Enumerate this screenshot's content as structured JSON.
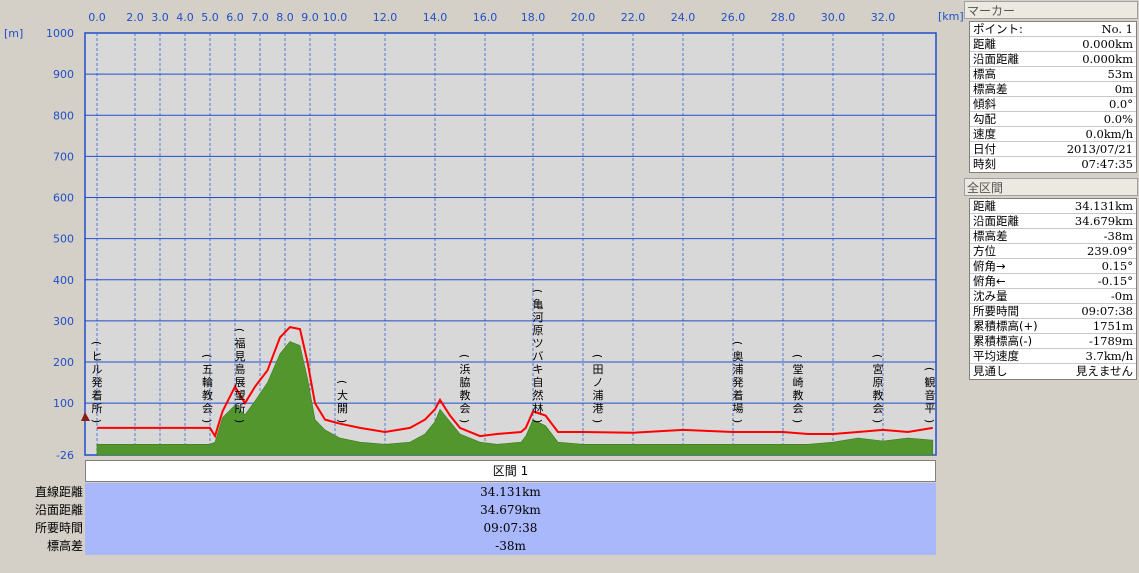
{
  "chart_data": {
    "type": "area",
    "x_unit": "[km]",
    "y_unit": "[m]",
    "x_ticks": [
      "0.0",
      "2.0",
      "3.0",
      "4.0",
      "5.0",
      "6.0",
      "7.0",
      "8.0",
      "9.0",
      "10.0",
      "12.0",
      "14.0",
      "16.0",
      "18.0",
      "20.0",
      "22.0",
      "24.0",
      "26.0",
      "28.0",
      "30.0",
      "32.0"
    ],
    "y_ticks": [
      "1000",
      "900",
      "800",
      "700",
      "600",
      "500",
      "400",
      "300",
      "200",
      "100",
      "-26"
    ],
    "ylim": [
      -26,
      1000
    ],
    "grid": true,
    "series": [
      {
        "color": "#54962e",
        "fill": true,
        "points": [
          [
            0,
            0
          ],
          [
            5,
            0
          ],
          [
            5.2,
            5
          ],
          [
            5.5,
            65
          ],
          [
            6,
            95
          ],
          [
            6.4,
            72
          ],
          [
            6.8,
            105
          ],
          [
            7.3,
            150
          ],
          [
            7.8,
            220
          ],
          [
            8.2,
            250
          ],
          [
            8.6,
            240
          ],
          [
            8.9,
            160
          ],
          [
            9.2,
            60
          ],
          [
            9.6,
            35
          ],
          [
            10.2,
            15
          ],
          [
            11,
            5
          ],
          [
            12,
            0
          ],
          [
            13,
            5
          ],
          [
            13.6,
            25
          ],
          [
            14,
            55
          ],
          [
            14.2,
            85
          ],
          [
            14.6,
            55
          ],
          [
            15,
            25
          ],
          [
            15.8,
            5
          ],
          [
            16.5,
            0
          ],
          [
            17.5,
            5
          ],
          [
            17.7,
            20
          ],
          [
            18,
            60
          ],
          [
            18.5,
            45
          ],
          [
            19,
            5
          ],
          [
            20,
            0
          ],
          [
            22,
            0
          ],
          [
            24,
            0
          ],
          [
            26,
            0
          ],
          [
            28,
            0
          ],
          [
            29,
            0
          ],
          [
            30,
            5
          ],
          [
            31,
            15
          ],
          [
            32,
            8
          ],
          [
            33,
            15
          ],
          [
            34,
            10
          ]
        ]
      },
      {
        "color": "#ff0000",
        "fill": false,
        "points": [
          [
            0,
            40
          ],
          [
            5,
            40
          ],
          [
            5.2,
            20
          ],
          [
            5.5,
            80
          ],
          [
            6,
            140
          ],
          [
            6.4,
            100
          ],
          [
            6.8,
            140
          ],
          [
            7.3,
            180
          ],
          [
            7.8,
            260
          ],
          [
            8.2,
            285
          ],
          [
            8.6,
            280
          ],
          [
            8.9,
            200
          ],
          [
            9.2,
            100
          ],
          [
            9.6,
            60
          ],
          [
            10.2,
            50
          ],
          [
            11,
            40
          ],
          [
            12,
            30
          ],
          [
            13,
            40
          ],
          [
            13.6,
            60
          ],
          [
            14,
            85
          ],
          [
            14.2,
            108
          ],
          [
            14.6,
            70
          ],
          [
            15,
            40
          ],
          [
            15.8,
            20
          ],
          [
            16.5,
            25
          ],
          [
            17.5,
            30
          ],
          [
            17.7,
            40
          ],
          [
            18,
            80
          ],
          [
            18.5,
            70
          ],
          [
            19,
            30
          ],
          [
            20,
            30
          ],
          [
            22,
            28
          ],
          [
            24,
            35
          ],
          [
            26,
            30
          ],
          [
            28,
            30
          ],
          [
            29,
            25
          ],
          [
            30,
            25
          ],
          [
            31,
            30
          ],
          [
            32,
            35
          ],
          [
            33,
            30
          ],
          [
            34,
            40
          ]
        ]
      }
    ],
    "annotations": [
      {
        "label": "(ヒル発着所)",
        "x": 0.0
      },
      {
        "label": "(五輪教会)",
        "x": 4.9
      },
      {
        "label": "(福見島展望所)",
        "x": 6.2
      },
      {
        "label": "(大開)",
        "x": 10.3
      },
      {
        "label": "(浜脇教会)",
        "x": 15.2
      },
      {
        "label": "(亀河原ツバキ自然林)",
        "x": 18.2
      },
      {
        "label": "(田ノ浦港)",
        "x": 20.6
      },
      {
        "label": "(奥浦発着場)",
        "x": 26.2
      },
      {
        "label": "(堂崎教会)",
        "x": 28.6
      },
      {
        "label": "(宮原教会)",
        "x": 31.8
      },
      {
        "label": "(観音平)",
        "x": 34.0
      }
    ]
  },
  "section": {
    "header": "区間 1",
    "rows": [
      {
        "label": "直線距離",
        "value": "34.131km"
      },
      {
        "label": "沿面距離",
        "value": "34.679km"
      },
      {
        "label": "所要時間",
        "value": "09:07:38"
      },
      {
        "label": "標高差",
        "value": "-38m"
      }
    ]
  },
  "panel": {
    "marker_title": "マーカー",
    "marker_rows": [
      {
        "key": "ポイント:",
        "value": "No. 1"
      },
      {
        "key": "距離",
        "value": "0.000km"
      },
      {
        "key": "沿面距離",
        "value": "0.000km"
      },
      {
        "key": "標高",
        "value": "53m"
      },
      {
        "key": "標高差",
        "value": "0m"
      },
      {
        "key": "傾斜",
        "value": "0.0°"
      },
      {
        "key": "勾配",
        "value": "0.0%"
      },
      {
        "key": "速度",
        "value": "0.0km/h"
      },
      {
        "key": "日付",
        "value": "2013/07/21"
      },
      {
        "key": "時刻",
        "value": "07:47:35"
      }
    ],
    "total_title": "全区間",
    "total_rows": [
      {
        "key": "距離",
        "value": "34.131km"
      },
      {
        "key": "沿面距離",
        "value": "34.679km"
      },
      {
        "key": "標高差",
        "value": "-38m"
      },
      {
        "key": "方位",
        "value": "239.09°"
      },
      {
        "key": "俯角→",
        "value": "0.15°"
      },
      {
        "key": "俯角←",
        "value": "-0.15°"
      },
      {
        "key": "沈み量",
        "value": "-0m"
      },
      {
        "key": "所要時間",
        "value": "09:07:38"
      },
      {
        "key": "累積標高(+)",
        "value": "1751m"
      },
      {
        "key": "累積標高(-)",
        "value": "-1789m"
      },
      {
        "key": "平均速度",
        "value": "3.7km/h"
      },
      {
        "key": "見通し",
        "value": "見えません"
      }
    ]
  }
}
